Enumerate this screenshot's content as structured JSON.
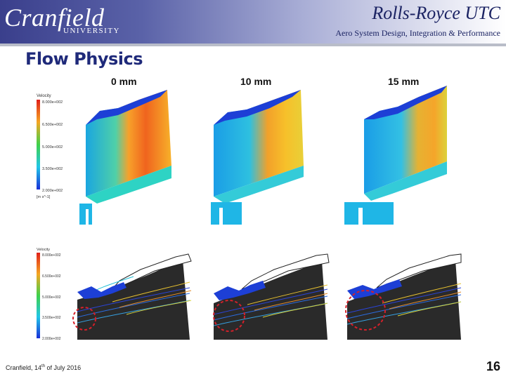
{
  "header": {
    "logo_main": "Cranfield",
    "logo_sub": "UNIVERSITY",
    "org": "Rolls-Royce UTC",
    "subtitle": "Aero System Design, Integration & Performance"
  },
  "slide": {
    "title": "Flow Physics",
    "columns": [
      "0 mm",
      "10 mm",
      "15 mm"
    ]
  },
  "legend_top": {
    "label": "Velocity",
    "ticks": [
      "8.000e+002",
      "6.500e+002",
      "5.000e+002",
      "3.500e+002",
      "2.000e+002"
    ],
    "unit": "[m s^-1]"
  },
  "legend_bottom": {
    "label": "Velocity",
    "ticks": [
      "8.000e+002",
      "6.500e+002",
      "5.000e+002",
      "3.500e+002",
      "2.000e+002"
    ]
  },
  "footer": {
    "text_before": "Cranfield, 14",
    "sup": "th",
    "text_after": " of July 2016",
    "page": "16"
  },
  "colors": {
    "header_dark": "#3a3f8c",
    "title": "#1f2a7a",
    "highlight_circle": "#d6202a"
  },
  "icons": {
    "contour_plot": "velocity-contour-image",
    "streamline_plot": "streamline-image"
  }
}
